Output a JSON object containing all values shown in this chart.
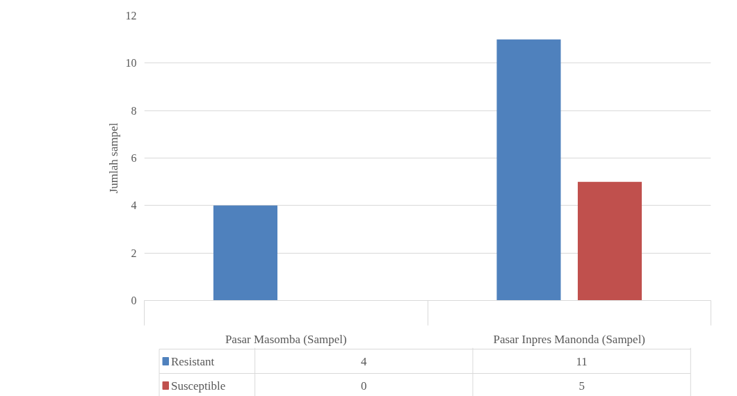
{
  "chart_data": {
    "type": "bar",
    "ylabel": "Jumlah sampel",
    "categories": [
      "Pasar Masomba (Sampel)",
      "Pasar Inpres Manonda (Sampel)"
    ],
    "series": [
      {
        "name": "Resistant",
        "color": "#4f81bd",
        "values": [
          4,
          11
        ]
      },
      {
        "name": "Susceptible",
        "color": "#c0504d",
        "values": [
          0,
          5
        ]
      }
    ],
    "ylim": [
      0,
      12
    ],
    "yticks": [
      0,
      2,
      4,
      6,
      8,
      10,
      12
    ],
    "grid": "y",
    "legend": "bottom",
    "data_labels": true
  }
}
